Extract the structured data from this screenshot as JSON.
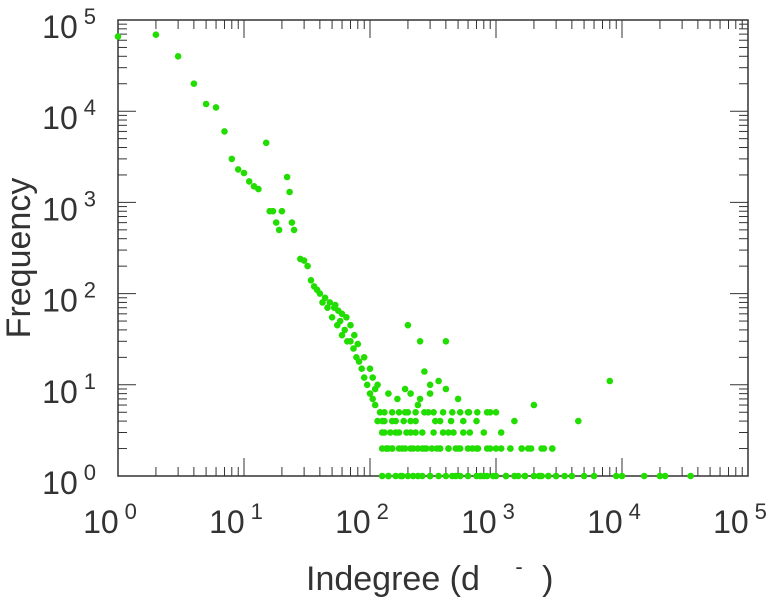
{
  "chart_data": {
    "type": "scatter",
    "xlabel": "Indegree (d",
    "xlabel_superscript": "-",
    "xlabel_close": ")",
    "ylabel": "Frequency",
    "x_scale": "log",
    "y_scale": "log",
    "xlim": [
      1,
      100000
    ],
    "ylim": [
      1,
      100000
    ],
    "grid": false,
    "legend": "none",
    "point_color": "#22dd00",
    "x_ticks": [
      {
        "base": "10",
        "exp": "0",
        "value": 1
      },
      {
        "base": "10",
        "exp": "1",
        "value": 10
      },
      {
        "base": "10",
        "exp": "2",
        "value": 100
      },
      {
        "base": "10",
        "exp": "3",
        "value": 1000
      },
      {
        "base": "10",
        "exp": "4",
        "value": 10000
      },
      {
        "base": "10",
        "exp": "5",
        "value": 100000
      }
    ],
    "y_ticks": [
      {
        "base": "10",
        "exp": "0",
        "value": 1
      },
      {
        "base": "10",
        "exp": "1",
        "value": 10
      },
      {
        "base": "10",
        "exp": "2",
        "value": 100
      },
      {
        "base": "10",
        "exp": "3",
        "value": 1000
      },
      {
        "base": "10",
        "exp": "4",
        "value": 10000
      },
      {
        "base": "10",
        "exp": "5",
        "value": 100000
      }
    ],
    "points": [
      [
        1,
        66000
      ],
      [
        2,
        69000
      ],
      [
        3,
        40000
      ],
      [
        4,
        20000
      ],
      [
        5,
        12000
      ],
      [
        6,
        11000
      ],
      [
        7,
        6000
      ],
      [
        8,
        3000
      ],
      [
        9,
        2300
      ],
      [
        10,
        2100
      ],
      [
        11,
        1700
      ],
      [
        12,
        1500
      ],
      [
        13,
        1400
      ],
      [
        15,
        4500
      ],
      [
        16,
        800
      ],
      [
        17,
        800
      ],
      [
        18,
        600
      ],
      [
        19,
        500
      ],
      [
        20,
        800
      ],
      [
        22,
        1900
      ],
      [
        23,
        1300
      ],
      [
        24,
        600
      ],
      [
        25,
        500
      ],
      [
        28,
        240
      ],
      [
        30,
        230
      ],
      [
        32,
        200
      ],
      [
        34,
        140
      ],
      [
        36,
        120
      ],
      [
        38,
        110
      ],
      [
        40,
        100
      ],
      [
        42,
        80
      ],
      [
        44,
        90
      ],
      [
        46,
        70
      ],
      [
        48,
        80
      ],
      [
        50,
        55
      ],
      [
        52,
        70
      ],
      [
        55,
        45
      ],
      [
        58,
        50
      ],
      [
        60,
        35
      ],
      [
        63,
        40
      ],
      [
        66,
        30
      ],
      [
        70,
        30
      ],
      [
        74,
        25
      ],
      [
        78,
        20
      ],
      [
        82,
        18
      ],
      [
        86,
        15
      ],
      [
        90,
        12
      ],
      [
        95,
        10
      ],
      [
        100,
        8
      ],
      [
        105,
        7
      ],
      [
        110,
        6
      ],
      [
        115,
        4
      ],
      [
        120,
        5
      ],
      [
        125,
        4
      ],
      [
        130,
        3
      ],
      [
        135,
        2
      ],
      [
        140,
        1
      ],
      [
        145,
        3
      ],
      [
        150,
        2
      ],
      [
        160,
        4
      ],
      [
        170,
        3
      ],
      [
        180,
        2
      ],
      [
        190,
        5
      ],
      [
        200,
        45
      ],
      [
        210,
        3
      ],
      [
        220,
        2
      ],
      [
        230,
        4
      ],
      [
        240,
        6
      ],
      [
        250,
        30
      ],
      [
        260,
        3
      ],
      [
        270,
        14
      ],
      [
        280,
        2
      ],
      [
        290,
        5
      ],
      [
        300,
        8
      ],
      [
        320,
        3
      ],
      [
        340,
        2
      ],
      [
        360,
        4
      ],
      [
        380,
        3
      ],
      [
        400,
        30
      ],
      [
        420,
        2
      ],
      [
        440,
        4
      ],
      [
        460,
        3
      ],
      [
        480,
        1
      ],
      [
        500,
        7
      ],
      [
        520,
        2
      ],
      [
        550,
        3
      ],
      [
        600,
        5
      ],
      [
        650,
        2
      ],
      [
        700,
        4
      ],
      [
        750,
        1
      ],
      [
        800,
        3
      ],
      [
        850,
        2
      ],
      [
        900,
        5
      ],
      [
        950,
        1
      ],
      [
        1000,
        2
      ],
      [
        1100,
        3
      ],
      [
        1200,
        1
      ],
      [
        1300,
        2
      ],
      [
        1400,
        4
      ],
      [
        1500,
        1
      ],
      [
        1600,
        2
      ],
      [
        1700,
        1
      ],
      [
        1800,
        2
      ],
      [
        2000,
        6
      ],
      [
        2200,
        1
      ],
      [
        2400,
        2
      ],
      [
        2600,
        1
      ],
      [
        2800,
        2
      ],
      [
        3000,
        1
      ],
      [
        4000,
        1
      ],
      [
        4500,
        4
      ],
      [
        5000,
        1
      ],
      [
        6000,
        1
      ],
      [
        8000,
        11
      ],
      [
        9000,
        1
      ],
      [
        10000,
        1
      ],
      [
        15000,
        1
      ],
      [
        20000,
        1
      ],
      [
        22000,
        1
      ],
      [
        35000,
        1
      ],
      [
        125,
        3
      ],
      [
        130,
        4
      ],
      [
        140,
        2
      ],
      [
        150,
        4
      ],
      [
        160,
        3
      ],
      [
        175,
        1
      ],
      [
        185,
        4
      ],
      [
        195,
        3
      ],
      [
        210,
        4
      ],
      [
        230,
        3
      ],
      [
        260,
        2
      ],
      [
        300,
        1
      ],
      [
        330,
        4
      ],
      [
        360,
        2
      ],
      [
        420,
        3
      ],
      [
        480,
        2
      ],
      [
        550,
        4
      ],
      [
        620,
        3
      ],
      [
        700,
        2
      ],
      [
        800,
        1
      ],
      [
        125,
        1
      ],
      [
        140,
        1
      ],
      [
        160,
        1
      ],
      [
        180,
        1
      ],
      [
        200,
        1
      ],
      [
        220,
        1
      ],
      [
        240,
        1
      ],
      [
        260,
        1
      ],
      [
        300,
        1
      ],
      [
        350,
        1
      ],
      [
        400,
        1
      ],
      [
        450,
        1
      ],
      [
        520,
        1
      ],
      [
        600,
        1
      ],
      [
        700,
        1
      ],
      [
        850,
        1
      ],
      [
        1000,
        1
      ],
      [
        1200,
        1
      ],
      [
        1400,
        1
      ],
      [
        1700,
        1
      ],
      [
        2000,
        1
      ],
      [
        2300,
        1
      ],
      [
        2600,
        1
      ],
      [
        3000,
        1
      ],
      [
        3500,
        1
      ],
      [
        125,
        2
      ],
      [
        135,
        2
      ],
      [
        150,
        2
      ],
      [
        170,
        2
      ],
      [
        190,
        2
      ],
      [
        210,
        2
      ],
      [
        240,
        2
      ],
      [
        270,
        2
      ],
      [
        310,
        2
      ],
      [
        360,
        2
      ],
      [
        420,
        2
      ],
      [
        500,
        2
      ],
      [
        600,
        2
      ],
      [
        720,
        2
      ],
      [
        900,
        2
      ],
      [
        1100,
        2
      ],
      [
        1300,
        2
      ],
      [
        1600,
        2
      ],
      [
        1900,
        2
      ],
      [
        2300,
        2
      ],
      [
        2800,
        2
      ],
      [
        130,
        5
      ],
      [
        150,
        5
      ],
      [
        170,
        5
      ],
      [
        200,
        5
      ],
      [
        230,
        5
      ],
      [
        270,
        5
      ],
      [
        320,
        5
      ],
      [
        380,
        5
      ],
      [
        450,
        5
      ],
      [
        520,
        5
      ],
      [
        610,
        5
      ],
      [
        710,
        5
      ],
      [
        850,
        5
      ],
      [
        1000,
        5
      ],
      [
        140,
        8
      ],
      [
        165,
        7
      ],
      [
        190,
        9
      ],
      [
        210,
        8
      ],
      [
        250,
        7
      ],
      [
        300,
        10
      ],
      [
        350,
        11
      ],
      [
        400,
        9
      ],
      [
        90,
        20
      ],
      [
        100,
        15
      ],
      [
        105,
        12
      ],
      [
        110,
        9
      ],
      [
        115,
        10
      ],
      [
        80,
        28
      ],
      [
        75,
        35
      ],
      [
        70,
        45
      ],
      [
        65,
        55
      ],
      [
        60,
        60
      ],
      [
        56,
        65
      ],
      [
        53,
        75
      ]
    ]
  }
}
